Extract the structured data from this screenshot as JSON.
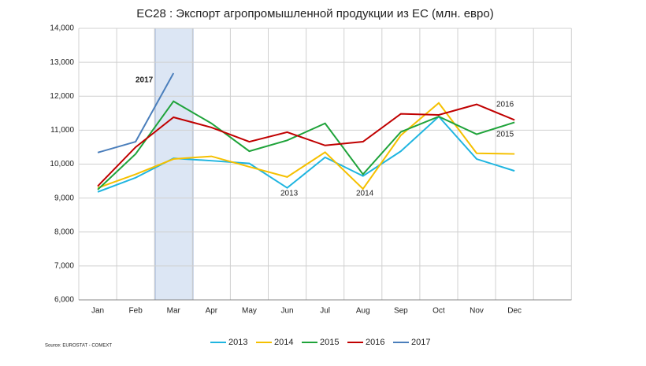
{
  "chart_data": {
    "type": "line",
    "title": "EC28 : Экспорт агропромышленной продукции из ЕС (млн. евро)",
    "categories": [
      "Jan",
      "Feb",
      "Mar",
      "Apr",
      "May",
      "Jun",
      "Jul",
      "Aug",
      "Sep",
      "Oct",
      "Nov",
      "Dec"
    ],
    "series": [
      {
        "name": "2013",
        "color": "#1fb5e0",
        "values": [
          9180,
          9600,
          10170,
          10100,
          10020,
          9300,
          10200,
          9650,
          10380,
          11400,
          10150,
          9800
        ]
      },
      {
        "name": "2014",
        "color": "#f5c000",
        "values": [
          9300,
          9700,
          10150,
          10230,
          9920,
          9620,
          10350,
          9270,
          10850,
          11800,
          10320,
          10300
        ]
      },
      {
        "name": "2015",
        "color": "#1fa33a",
        "values": [
          9250,
          10300,
          11850,
          11200,
          10380,
          10700,
          11200,
          9700,
          10950,
          11400,
          10880,
          11230
        ]
      },
      {
        "name": "2016",
        "color": "#c00000",
        "values": [
          9350,
          10500,
          11380,
          11080,
          10660,
          10940,
          10550,
          10660,
          11480,
          11450,
          11760,
          11300
        ]
      },
      {
        "name": "2017",
        "color": "#4a7ebb",
        "values": [
          10340,
          10660,
          12680,
          null,
          null,
          null,
          null,
          null,
          null,
          null,
          null,
          null
        ]
      }
    ],
    "ylim": [
      6000,
      14000
    ],
    "yticks": [
      {
        "value": 6000,
        "label": "6,000"
      },
      {
        "value": 7000,
        "label": "7,000"
      },
      {
        "value": 8000,
        "label": "8,000"
      },
      {
        "value": 9000,
        "label": "9,000"
      },
      {
        "value": 10000,
        "label": "10,000"
      },
      {
        "value": 11000,
        "label": "11,000"
      },
      {
        "value": 12000,
        "label": "12,000"
      },
      {
        "value": 13000,
        "label": "13,000"
      },
      {
        "value": 14000,
        "label": "14,000"
      }
    ],
    "grid": true,
    "legend": "bottom",
    "annotations": [
      "2017",
      "2013",
      "2014",
      "2016",
      "2015"
    ],
    "source": "Source: EUROSTAT - COMEXT"
  }
}
